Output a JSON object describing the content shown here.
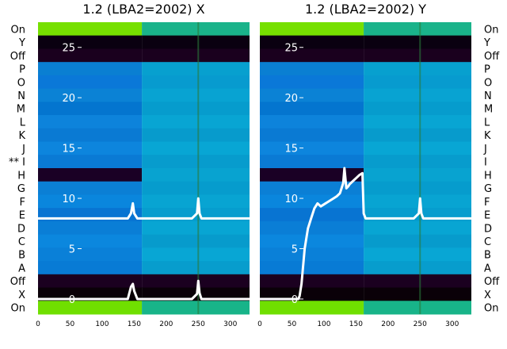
{
  "chart_data": {
    "type": "heatmap",
    "row_labels": [
      "On",
      "X",
      "Off",
      "A",
      "B",
      "C",
      "D",
      "E",
      "F",
      "G",
      "H",
      "** I",
      "J",
      "K",
      "L",
      "M",
      "N",
      "O",
      "P",
      "Off",
      "Y",
      "On"
    ],
    "right_row_labels": [
      "On",
      "X",
      "Off",
      "A",
      "B",
      "C",
      "D",
      "E",
      "F",
      "G",
      "H",
      "I",
      "J",
      "K",
      "L",
      "M",
      "N",
      "O",
      "P",
      "Off",
      "Y",
      "On"
    ],
    "x_ticks": [
      0,
      50,
      100,
      150,
      200,
      250,
      300
    ],
    "xlim": [
      0,
      330
    ],
    "y_ticks": [
      0,
      5,
      10,
      15,
      20,
      25
    ],
    "ylim": [
      -1.5,
      27.5
    ],
    "panels": [
      {
        "title": "1.2 (LBA2=2002) X",
        "series": [
          {
            "x": [
              0,
              5,
              10,
              20,
              30,
              40,
              50,
              60,
              70,
              80,
              90,
              100,
              110,
              120,
              130,
              140,
              145,
              148,
              150,
              155,
              160,
              165,
              170,
              180,
              200,
              220,
              240,
              248,
              250,
              252,
              255,
              260,
              280,
              300,
              320,
              330
            ],
            "y": [
              0,
              0,
              0,
              0,
              0,
              0,
              0,
              0,
              0,
              0,
              0,
              0,
              0,
              0,
              0,
              0,
              1.2,
              1.5,
              0.8,
              0,
              0,
              0,
              0,
              0,
              0,
              0,
              0,
              0.5,
              1.8,
              0.6,
              0,
              0,
              0,
              0,
              0,
              0
            ]
          },
          {
            "x": [
              0,
              5,
              10,
              20,
              30,
              40,
              50,
              60,
              70,
              80,
              90,
              100,
              110,
              120,
              130,
              140,
              145,
              148,
              150,
              155,
              160,
              165,
              170,
              180,
              200,
              220,
              240,
              248,
              250,
              252,
              255,
              260,
              280,
              300,
              320,
              330
            ],
            "y": [
              8,
              8,
              8,
              8,
              8,
              8,
              8,
              8,
              8,
              8,
              8,
              8,
              8,
              8,
              8,
              8,
              8.5,
              9.5,
              8.5,
              8,
              8,
              8,
              8,
              8,
              8,
              8,
              8,
              8.5,
              10,
              8.5,
              8,
              8,
              8,
              8,
              8,
              8
            ]
          }
        ]
      },
      {
        "title": "1.2 (LBA2=2002) Y",
        "series": [
          {
            "x": [
              0,
              10,
              20,
              30,
              40,
              50,
              60,
              62,
              65,
              70,
              75,
              80,
              85,
              90,
              95,
              100,
              105,
              110,
              115,
              120,
              125,
              130,
              132,
              135,
              138,
              140,
              145,
              150,
              155,
              160,
              162,
              165,
              170,
              180,
              200,
              220,
              240,
              248,
              250,
              252,
              255,
              260,
              280,
              300,
              320,
              330
            ],
            "y": [
              0,
              0,
              0,
              0,
              0,
              0,
              0,
              0.3,
              1.5,
              5,
              7,
              8,
              9,
              9.5,
              9.2,
              9.4,
              9.6,
              9.8,
              10,
              10.2,
              10.5,
              11.5,
              13,
              11,
              11.2,
              11.4,
              11.7,
              12,
              12.3,
              12.5,
              8.5,
              8,
              8,
              8,
              8,
              8,
              8,
              8.5,
              10,
              8.5,
              8,
              8,
              8,
              8,
              8,
              8
            ]
          }
        ]
      }
    ]
  }
}
